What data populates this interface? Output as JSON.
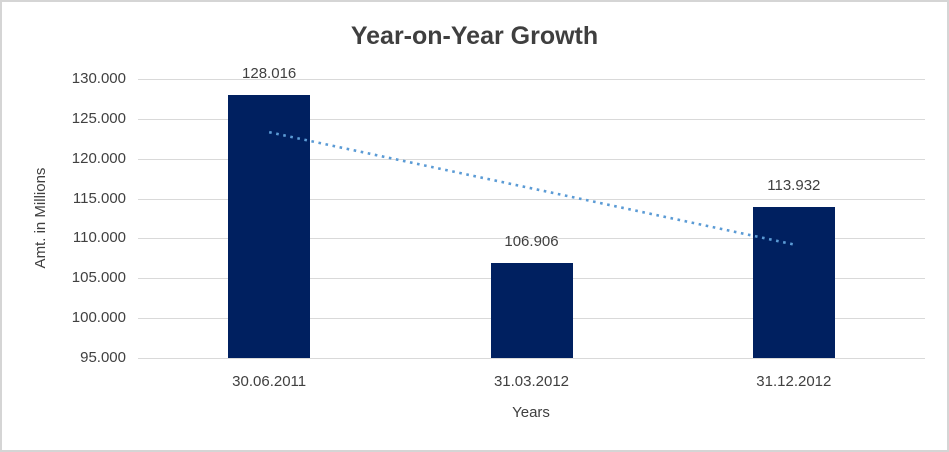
{
  "title": "Year-on-Year Growth",
  "chart_data": {
    "type": "bar",
    "title": "Year-on-Year Growth",
    "categories": [
      "30.06.2011",
      "31.03.2012",
      "31.12.2012"
    ],
    "values": [
      128016,
      106906,
      113932
    ],
    "data_labels": [
      "128.016",
      "106.906",
      "113.932"
    ],
    "xlabel": "Years",
    "ylabel": "Amt. in Millions",
    "ylim": [
      95000,
      130000
    ],
    "ytick_step": 5000,
    "ytick_labels": [
      "95.000",
      "100.000",
      "105.000",
      "110.000",
      "115.000",
      "120.000",
      "125.000",
      "130.000"
    ],
    "grid": true,
    "legend_position": "none",
    "colors": {
      "bar": "#002060",
      "trendline": "#5b9bd5",
      "gridline": "#d9d9d9",
      "axis_line": "#d9d9d9",
      "text": "#404040",
      "title_text": "#3f3f3f"
    },
    "trendline": {
      "type": "linear",
      "style": "dotted",
      "start_value": 123327,
      "end_value": 109243
    }
  }
}
